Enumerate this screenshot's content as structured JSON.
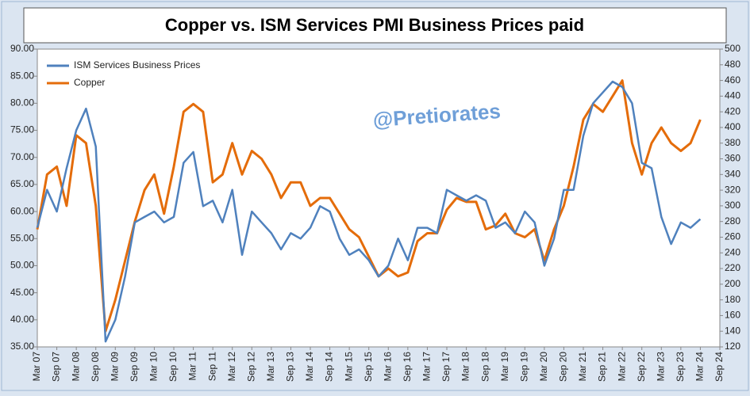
{
  "chart_data": {
    "type": "line",
    "title": "Copper vs. ISM Services PMI Business Prices paid",
    "annotation": "@Pretiorates",
    "categories": [
      "Mar 07",
      null,
      "Sep 07",
      null,
      "Mar 08",
      null,
      "Sep 08",
      null,
      "Mar 09",
      null,
      "Sep 09",
      null,
      "Mar 10",
      null,
      "Sep 10",
      null,
      "Mar 11",
      null,
      "Sep 11",
      null,
      "Mar 12",
      null,
      "Sep 12",
      null,
      "Mar 13",
      null,
      "Sep 13",
      null,
      "Mar 14",
      null,
      "Sep 14",
      null,
      "Mar 15",
      null,
      "Sep 15",
      null,
      "Mar 16",
      null,
      "Sep 16",
      null,
      "Mar 17",
      null,
      "Sep 17",
      null,
      "Mar 18",
      null,
      "Sep 18",
      null,
      "Mar 19",
      null,
      "Sep 19",
      null,
      "Mar 20",
      null,
      "Sep 20",
      null,
      "Mar 21",
      null,
      "Sep 21",
      null,
      "Mar 22",
      null,
      "Sep 22",
      null,
      "Mar 23",
      null,
      "Sep 23",
      null,
      "Mar 24",
      null,
      "Sep 24"
    ],
    "series": [
      {
        "name": "ISM Services Business Prices",
        "color": "#4f81bd",
        "axis": "y",
        "values": [
          57,
          64,
          60,
          68,
          75,
          79,
          72,
          36,
          40,
          48,
          58,
          59,
          60,
          58,
          59,
          69,
          71,
          61,
          62,
          58,
          64,
          52,
          60,
          58,
          56,
          53,
          56,
          55,
          57,
          61,
          60,
          55,
          52,
          53,
          51,
          48,
          50,
          55,
          51,
          57,
          57,
          56,
          64,
          63,
          62,
          63,
          62,
          57,
          58,
          56,
          60,
          58,
          50,
          55,
          64,
          64,
          74,
          80,
          82,
          84,
          83,
          80,
          69,
          68,
          59,
          54,
          58,
          57,
          58.6,
          null,
          null
        ]
      },
      {
        "name": "Copper",
        "color": "#e46c0a",
        "axis": "y2",
        "values": [
          270,
          340,
          350,
          300,
          390,
          380,
          300,
          140,
          180,
          230,
          280,
          320,
          340,
          290,
          350,
          420,
          430,
          420,
          330,
          340,
          380,
          340,
          370,
          360,
          340,
          310,
          330,
          330,
          300,
          310,
          310,
          290,
          270,
          260,
          235,
          210,
          220,
          210,
          215,
          255,
          265,
          265,
          295,
          310,
          305,
          305,
          270,
          275,
          290,
          265,
          260,
          270,
          230,
          270,
          300,
          350,
          410,
          430,
          420,
          440,
          460,
          380,
          340,
          380,
          400,
          380,
          370,
          380,
          410,
          null,
          null
        ]
      }
    ],
    "ylim": [
      35,
      90
    ],
    "yticks": [
      {
        "value": 35,
        "label": "35.00"
      },
      {
        "value": 40,
        "label": "40.00"
      },
      {
        "value": 45,
        "label": "45.00"
      },
      {
        "value": 50,
        "label": "50.00"
      },
      {
        "value": 55,
        "label": "55.00"
      },
      {
        "value": 60,
        "label": "60.00"
      },
      {
        "value": 65,
        "label": "65.00"
      },
      {
        "value": 70,
        "label": "70.00"
      },
      {
        "value": 75,
        "label": "75.00"
      },
      {
        "value": 80,
        "label": "80.00"
      },
      {
        "value": 85,
        "label": "85.00"
      },
      {
        "value": 90,
        "label": "90.00"
      }
    ],
    "y2lim": [
      120,
      500
    ],
    "y2ticks": [
      120,
      140,
      160,
      180,
      200,
      220,
      240,
      260,
      280,
      300,
      320,
      340,
      360,
      380,
      400,
      420,
      440,
      460,
      480,
      500
    ],
    "legend": "upper left"
  }
}
